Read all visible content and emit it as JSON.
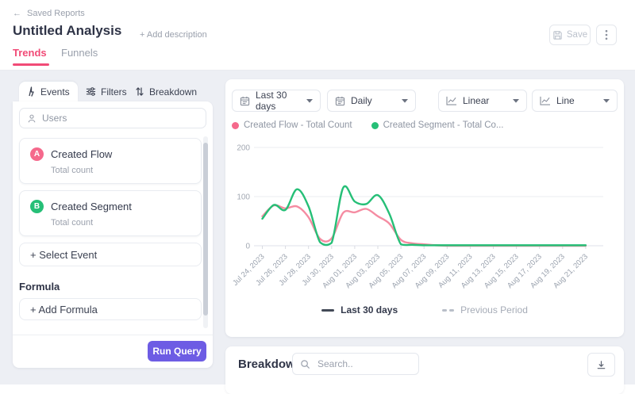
{
  "header": {
    "back_label": "Saved Reports",
    "title": "Untitled Analysis",
    "add_description_label": "+ Add description",
    "save_label": "Save",
    "tabs": [
      {
        "label": "Trends",
        "active": true
      },
      {
        "label": "Funnels",
        "active": false
      }
    ]
  },
  "query_panel": {
    "tabs": [
      {
        "label": "Events",
        "active": true
      },
      {
        "label": "Filters",
        "active": false
      },
      {
        "label": "Breakdown",
        "active": false
      }
    ],
    "users_label": "Users",
    "events": [
      {
        "badge": "A",
        "name": "Created Flow",
        "metric": "Total count",
        "color": "#f5698c"
      },
      {
        "badge": "B",
        "name": "Created Segment",
        "metric": "Total count",
        "color": "#26bf77"
      }
    ],
    "select_event_label": "+ Select Event",
    "formula_heading": "Formula",
    "add_formula_label": "+ Add Formula",
    "run_query_label": "Run Query"
  },
  "controls": {
    "date_range": "Last 30 days",
    "granularity": "Daily",
    "scale": "Linear",
    "chart_type": "Line"
  },
  "legend": [
    {
      "label": "Created Flow - Total Count",
      "color": "#f5698c"
    },
    {
      "label": "Created Segment - Total Co...",
      "color": "#26bf77"
    }
  ],
  "chart_data": {
    "type": "line",
    "title": "",
    "xlabel": "",
    "ylabel": "",
    "ylim": [
      0,
      200
    ],
    "y_ticks": [
      0,
      100,
      200
    ],
    "grid": true,
    "x": [
      "Jul 24, 2023",
      "Jul 25, 2023",
      "Jul 26, 2023",
      "Jul 27, 2023",
      "Jul 28, 2023",
      "Jul 29, 2023",
      "Jul 30, 2023",
      "Jul 31, 2023",
      "Aug 01, 2023",
      "Aug 02, 2023",
      "Aug 03, 2023",
      "Aug 04, 2023",
      "Aug 05, 2023",
      "Aug 06, 2023",
      "Aug 07, 2023",
      "Aug 08, 2023",
      "Aug 09, 2023",
      "Aug 10, 2023",
      "Aug 11, 2023",
      "Aug 12, 2023",
      "Aug 13, 2023",
      "Aug 14, 2023",
      "Aug 15, 2023",
      "Aug 16, 2023",
      "Aug 17, 2023",
      "Aug 18, 2023",
      "Aug 19, 2023",
      "Aug 20, 2023",
      "Aug 21, 2023"
    ],
    "x_tick_labels": [
      "Jul 24, 2023",
      "Jul 26, 2023",
      "Jul 28, 2023",
      "Jul 30, 2023",
      "Aug 01, 2023",
      "Aug 03, 2023",
      "Aug 05, 2023",
      "Aug 07, 2023",
      "Aug 09, 2023",
      "Aug 11, 2023",
      "Aug 13, 2023",
      "Aug 15, 2023",
      "Aug 17, 2023",
      "Aug 19, 2023",
      "Aug 21, 2023"
    ],
    "series": [
      {
        "name": "Created Flow - Total Count",
        "color": "#f58ca2",
        "values": [
          60,
          82,
          76,
          80,
          58,
          14,
          15,
          67,
          68,
          75,
          60,
          45,
          12,
          5,
          3,
          1,
          0,
          0,
          0,
          0,
          0,
          0,
          0,
          0,
          0,
          0,
          0,
          0,
          0
        ]
      },
      {
        "name": "Created Segment - Total Count",
        "color": "#26bf77",
        "values": [
          55,
          83,
          73,
          115,
          80,
          7,
          6,
          118,
          90,
          85,
          103,
          65,
          3,
          2,
          1,
          1,
          1,
          1,
          1,
          1,
          1,
          1,
          1,
          1,
          1,
          1,
          1,
          1,
          1
        ]
      }
    ],
    "legend_position": "top"
  },
  "footer_legend": [
    {
      "label": "Last 30 days",
      "style": "solid"
    },
    {
      "label": "Previous Period",
      "style": "dashed"
    }
  ],
  "breakdown": {
    "title": "Breakdown",
    "search_placeholder": "Search.."
  },
  "icons": {
    "back": "arrow-left",
    "save": "floppy-disk",
    "menu": "kebab-dots",
    "events_tab": "activity-zigzag",
    "filters_tab": "sliders",
    "breakdown_tab": "sort-arrows",
    "users": "person",
    "date_range": "calendar",
    "granularity": "calendar",
    "scale": "line-chart",
    "chart_type": "line-chart",
    "dropdown": "caret-down",
    "search": "magnifier",
    "download": "download-tray"
  },
  "colors": {
    "accent_pink": "#f14b77",
    "accent_purple": "#6d5ce4",
    "series_pink": "#f58ca2",
    "series_green": "#26bf77",
    "background_gray": "#edeff4"
  }
}
